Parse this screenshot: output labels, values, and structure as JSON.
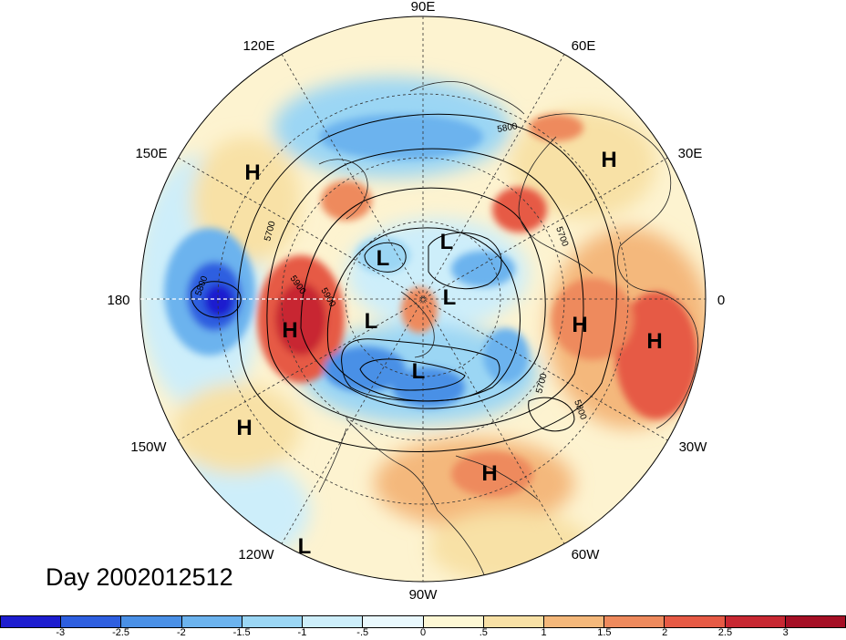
{
  "map": {
    "projection": "polar-stereographic-north",
    "longitude_labels": [
      "90E",
      "60E",
      "30E",
      "0",
      "30W",
      "60W",
      "90W",
      "120W",
      "150W",
      "180",
      "150E",
      "120E"
    ],
    "pressure_systems": [
      {
        "type": "H",
        "text": "H"
      },
      {
        "type": "H",
        "text": "H"
      },
      {
        "type": "H",
        "text": "H"
      },
      {
        "type": "H",
        "text": "H"
      },
      {
        "type": "H",
        "text": "H"
      },
      {
        "type": "H",
        "text": "H"
      },
      {
        "type": "H",
        "text": "H"
      },
      {
        "type": "L",
        "text": "L"
      },
      {
        "type": "L",
        "text": "L"
      },
      {
        "type": "L",
        "text": "L"
      },
      {
        "type": "L",
        "text": "L"
      },
      {
        "type": "L",
        "text": "L"
      },
      {
        "type": "L",
        "text": "L"
      }
    ],
    "contour_labels": [
      "5800",
      "5700",
      "5900",
      "5800",
      "5900",
      "5700",
      "5700",
      "5800"
    ],
    "colors": {
      "neg3": "#1d1dcf",
      "neg25": "#2e5fe0",
      "neg2": "#4a90e6",
      "neg15": "#6cb3ee",
      "neg1": "#9bd6f4",
      "neg05": "#cdeefa",
      "zero_pos": "#fdf7d4",
      "pos05": "#f8e1a6",
      "pos1": "#f4b87b",
      "pos15": "#ee8a5d",
      "pos2": "#e65a45",
      "pos25": "#c82832",
      "pos3": "#a50f25"
    }
  },
  "date_label": "Day 2002012512",
  "colorbar": {
    "ticks": [
      "-3",
      "-2.5",
      "-2",
      "-1.5",
      "-1",
      "-.5",
      "0",
      ".5",
      "1",
      "1.5",
      "2",
      "2.5",
      "3"
    ],
    "colors": [
      "#1d1dcf",
      "#2e5fe0",
      "#4a90e6",
      "#6cb3ee",
      "#9bd6f4",
      "#cdeefa",
      "#e9f8fd",
      "#fdf7d4",
      "#f8e1a6",
      "#f4b87b",
      "#ee8a5d",
      "#e65a45",
      "#c82832",
      "#a50f25"
    ]
  }
}
